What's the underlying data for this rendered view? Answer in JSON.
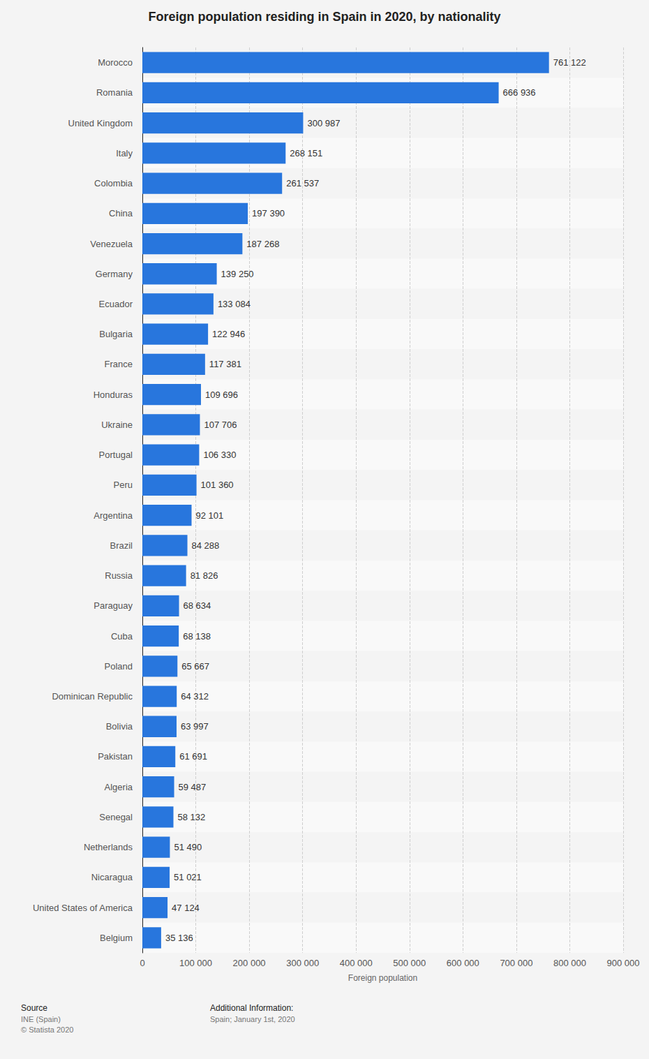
{
  "chart_data": {
    "type": "bar",
    "orientation": "horizontal",
    "title": "Foreign population residing in Spain in 2020, by nationality",
    "x_label": "Foreign population",
    "categories": [
      "Morocco",
      "Romania",
      "United Kingdom",
      "Italy",
      "Colombia",
      "China",
      "Venezuela",
      "Germany",
      "Ecuador",
      "Bulgaria",
      "France",
      "Honduras",
      "Ukraine",
      "Portugal",
      "Peru",
      "Argentina",
      "Brazil",
      "Russia",
      "Paraguay",
      "Cuba",
      "Poland",
      "Dominican Republic",
      "Bolivia",
      "Pakistan",
      "Algeria",
      "Senegal",
      "Netherlands",
      "Nicaragua",
      "United States of America",
      "Belgium"
    ],
    "values": [
      761122,
      666936,
      300987,
      268151,
      261537,
      197390,
      187268,
      139250,
      133084,
      122946,
      117381,
      109696,
      107706,
      106330,
      101360,
      92101,
      84288,
      81826,
      68634,
      68138,
      65667,
      64312,
      63997,
      61691,
      59487,
      58132,
      51490,
      51021,
      47124,
      35136
    ],
    "value_labels": [
      "761 122",
      "666 936",
      "300 987",
      "268 151",
      "261 537",
      "197 390",
      "187 268",
      "139 250",
      "133 084",
      "122 946",
      "117 381",
      "109 696",
      "107 706",
      "106 330",
      "101 360",
      "92 101",
      "84 288",
      "81 826",
      "68 634",
      "68 138",
      "65 667",
      "64 312",
      "63 997",
      "61 691",
      "59 487",
      "58 132",
      "51 490",
      "51 021",
      "47 124",
      "35 136"
    ],
    "data_labels": true,
    "color": "#2876dd",
    "xlim": [
      0,
      900000
    ],
    "xticks": [
      0,
      {
        "value": 100000,
        "label": "100 000"
      },
      {
        "value": 200000,
        "label": "200 000"
      },
      {
        "value": 300000,
        "label": "300 000"
      },
      {
        "value": 400000,
        "label": "400 000"
      },
      {
        "value": 500000,
        "label": "500 000"
      },
      {
        "value": 600000,
        "label": "600 000"
      },
      {
        "value": 700000,
        "label": "700 000"
      },
      {
        "value": 800000,
        "label": "800 000"
      },
      {
        "value": 900000,
        "label": "900 000"
      }
    ],
    "grid": true,
    "annotations": [
      {
        "heading": "Source",
        "lines": [
          "INE (Spain)",
          "© Statista 2020"
        ]
      },
      {
        "heading": "Additional Information:",
        "lines": [
          "Spain; January 1st, 2020"
        ]
      }
    ]
  }
}
